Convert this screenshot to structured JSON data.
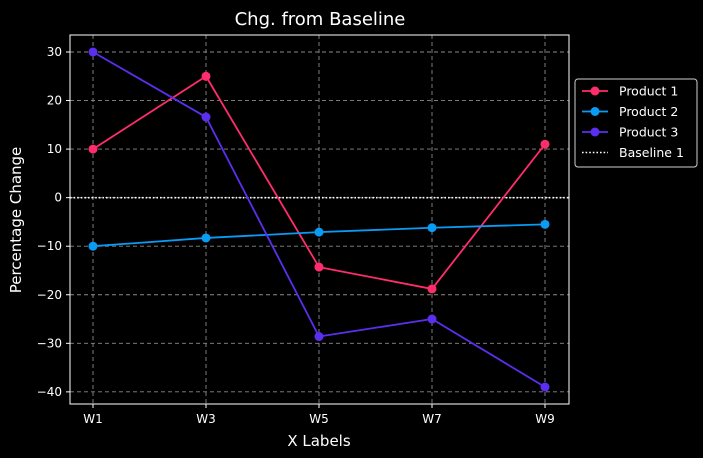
{
  "chart_data": {
    "type": "line",
    "title": "Chg. from Baseline",
    "xlabel": "X Labels",
    "ylabel": "Percentage Change",
    "categories": [
      "W1",
      "W3",
      "W5",
      "W7",
      "W9"
    ],
    "ylim": [
      -42.5,
      33.5
    ],
    "yticks": [
      30,
      20,
      10,
      0,
      -10,
      -20,
      -30,
      -40
    ],
    "ytick_labels": [
      "30",
      "20",
      "10",
      "0",
      "−10",
      "−20",
      "−30",
      "−40"
    ],
    "grid": true,
    "legend_position": "right, outside plot area",
    "series": [
      {
        "name": "Product 1",
        "color": "#ff2d6b",
        "values": [
          10,
          25,
          -14.3,
          -18.8,
          11
        ]
      },
      {
        "name": "Product 2",
        "color": "#0a9bf5",
        "values": [
          -10,
          -8.3,
          -7.1,
          -6.2,
          -5.5
        ]
      },
      {
        "name": "Product 3",
        "color": "#5b2ff0",
        "values": [
          30,
          16.6,
          -28.6,
          -25,
          -39
        ]
      }
    ],
    "baselines": [
      {
        "name": "Baseline 1",
        "value": 0,
        "color": "#ffffff",
        "style": "dotted"
      }
    ]
  }
}
